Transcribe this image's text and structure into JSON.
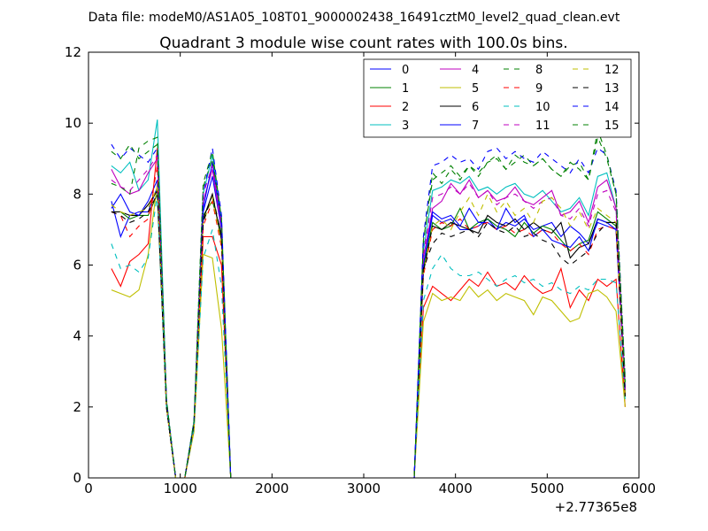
{
  "header": {
    "datafile": "Data file: modeM0/AS1A05_108T01_9000002438_16491cztM0_level2_quad_clean.evt"
  },
  "chart_data": {
    "type": "line",
    "title": "Quadrant 3 module wise count rates with 100.0s bins.",
    "xlabel": "",
    "ylabel": "",
    "offset_label": "+2.77365e8",
    "xlim": [
      0,
      6000
    ],
    "ylim": [
      0,
      12
    ],
    "xticks": [
      0,
      1000,
      2000,
      3000,
      4000,
      5000,
      6000
    ],
    "yticks": [
      0,
      2,
      4,
      6,
      8,
      10,
      12
    ],
    "legend_position": "top-right",
    "x": [
      250,
      350,
      450,
      550,
      650,
      750,
      850,
      950,
      1050,
      1150,
      1250,
      1350,
      1450,
      1550,
      1650,
      1750,
      1850,
      1950,
      2050,
      2150,
      2250,
      2350,
      2450,
      2550,
      2650,
      2750,
      2850,
      2950,
      3050,
      3150,
      3250,
      3350,
      3450,
      3550,
      3650,
      3750,
      3850,
      3950,
      4050,
      4150,
      4250,
      4350,
      4450,
      4550,
      4650,
      4750,
      4850,
      4950,
      5050,
      5150,
      5250,
      5350,
      5450,
      5550,
      5650,
      5750,
      5850
    ],
    "series": [
      {
        "name": "0",
        "color": "#0000ff",
        "dash": "solid",
        "values": [
          7.8,
          6.8,
          7.4,
          7.5,
          7.5,
          8.2,
          2.0,
          0,
          0,
          1.5,
          7.5,
          8.5,
          7.0,
          0,
          0,
          0,
          0,
          0,
          0,
          0,
          0,
          0,
          0,
          0,
          0,
          0,
          0,
          0,
          0,
          0,
          0,
          0,
          0,
          0,
          6.0,
          7.4,
          7.2,
          7.3,
          7.0,
          7.0,
          7.1,
          7.3,
          7.0,
          7.2,
          7.1,
          7.3,
          7.0,
          7.1,
          7.2,
          6.8,
          7.1,
          6.9,
          6.6,
          7.2,
          7.1,
          7.0,
          2.5
        ]
      },
      {
        "name": "1",
        "color": "#008000",
        "dash": "solid",
        "values": [
          7.5,
          7.5,
          7.3,
          7.4,
          7.4,
          8.0,
          2.0,
          0,
          0,
          1.5,
          7.4,
          7.8,
          6.9,
          0,
          0,
          0,
          0,
          0,
          0,
          0,
          0,
          0,
          0,
          0,
          0,
          0,
          0,
          0,
          0,
          0,
          0,
          0,
          0,
          0,
          5.9,
          7.2,
          7.0,
          7.1,
          7.6,
          7.0,
          7.2,
          7.3,
          7.1,
          7.0,
          6.8,
          7.2,
          6.9,
          7.1,
          7.0,
          6.7,
          6.4,
          6.6,
          6.7,
          7.5,
          7.3,
          7.1,
          2.4
        ]
      },
      {
        "name": "2",
        "color": "#ff0000",
        "dash": "solid",
        "values": [
          5.9,
          5.4,
          6.1,
          6.3,
          6.6,
          9.3,
          2.0,
          0,
          0,
          1.4,
          6.8,
          6.8,
          6.0,
          0,
          0,
          0,
          0,
          0,
          0,
          0,
          0,
          0,
          0,
          0,
          0,
          0,
          0,
          0,
          0,
          0,
          0,
          0,
          0,
          0,
          4.8,
          5.4,
          5.2,
          5.0,
          5.3,
          5.6,
          5.4,
          5.8,
          5.4,
          5.5,
          5.3,
          5.7,
          5.4,
          5.2,
          5.3,
          5.9,
          4.8,
          5.3,
          5.0,
          5.6,
          5.4,
          5.6,
          2.0
        ]
      },
      {
        "name": "3",
        "color": "#00bfbf",
        "dash": "solid",
        "values": [
          8.8,
          8.6,
          8.9,
          8.1,
          8.4,
          10.1,
          2.2,
          0,
          0,
          1.6,
          8.0,
          9.1,
          7.2,
          0,
          0,
          0,
          0,
          0,
          0,
          0,
          0,
          0,
          0,
          0,
          0,
          0,
          0,
          0,
          0,
          0,
          0,
          0,
          0,
          0,
          6.4,
          8.1,
          8.2,
          8.4,
          8.3,
          8.5,
          8.1,
          8.2,
          8.0,
          8.2,
          8.3,
          8.0,
          7.9,
          8.1,
          7.8,
          7.5,
          7.6,
          7.9,
          7.4,
          8.5,
          8.6,
          7.6,
          2.6
        ]
      },
      {
        "name": "4",
        "color": "#bf00bf",
        "dash": "solid",
        "values": [
          8.7,
          8.2,
          8.0,
          8.1,
          8.6,
          9.0,
          2.1,
          0,
          0,
          1.5,
          7.8,
          8.7,
          7.0,
          0,
          0,
          0,
          0,
          0,
          0,
          0,
          0,
          0,
          0,
          0,
          0,
          0,
          0,
          0,
          0,
          0,
          0,
          0,
          0,
          0,
          6.2,
          7.6,
          7.8,
          8.3,
          8.0,
          8.4,
          7.9,
          8.1,
          7.8,
          7.9,
          8.2,
          7.8,
          7.7,
          7.9,
          8.1,
          7.4,
          7.5,
          7.8,
          7.2,
          8.2,
          8.4,
          7.6,
          2.5
        ]
      },
      {
        "name": "5",
        "color": "#bfbf00",
        "dash": "solid",
        "values": [
          5.3,
          5.2,
          5.1,
          5.3,
          6.3,
          8.3,
          2.0,
          0,
          0,
          1.3,
          6.3,
          6.2,
          4.2,
          0,
          0,
          0,
          0,
          0,
          0,
          0,
          0,
          0,
          0,
          0,
          0,
          0,
          0,
          0,
          0,
          0,
          0,
          0,
          0,
          0,
          4.4,
          5.2,
          5.0,
          5.1,
          5.0,
          5.4,
          5.1,
          5.3,
          5.0,
          5.2,
          5.1,
          5.0,
          4.6,
          5.1,
          5.0,
          4.7,
          4.4,
          4.5,
          5.2,
          5.3,
          5.1,
          4.7,
          2.0
        ]
      },
      {
        "name": "6",
        "color": "#000000",
        "dash": "solid",
        "values": [
          7.5,
          7.5,
          7.4,
          7.4,
          7.7,
          8.1,
          2.0,
          0,
          0,
          1.5,
          7.3,
          8.0,
          6.7,
          0,
          0,
          0,
          0,
          0,
          0,
          0,
          0,
          0,
          0,
          0,
          0,
          0,
          0,
          0,
          0,
          0,
          0,
          0,
          0,
          0,
          5.8,
          7.1,
          7.0,
          7.2,
          7.1,
          7.0,
          6.9,
          7.4,
          7.2,
          7.1,
          7.3,
          7.0,
          7.2,
          7.0,
          6.9,
          7.2,
          6.2,
          6.5,
          6.6,
          7.3,
          7.2,
          7.2,
          2.3
        ]
      },
      {
        "name": "7",
        "color": "#0000ff",
        "dash": "solid",
        "values": [
          7.6,
          8.0,
          7.5,
          7.4,
          7.8,
          8.4,
          2.1,
          0,
          0,
          1.5,
          7.6,
          8.9,
          7.1,
          0,
          0,
          0,
          0,
          0,
          0,
          0,
          0,
          0,
          0,
          0,
          0,
          0,
          0,
          0,
          0,
          0,
          0,
          0,
          0,
          0,
          6.0,
          7.5,
          7.3,
          7.4,
          7.1,
          7.6,
          7.2,
          7.2,
          7.0,
          7.6,
          7.2,
          7.4,
          6.8,
          7.0,
          6.7,
          6.6,
          6.5,
          6.8,
          6.4,
          7.3,
          7.2,
          7.0,
          2.5
        ]
      },
      {
        "name": "8",
        "color": "#008000",
        "dash": "dashed",
        "values": [
          8.3,
          8.2,
          8.0,
          9.3,
          9.5,
          9.6,
          2.2,
          0,
          0,
          1.6,
          8.2,
          9.0,
          7.3,
          0,
          0,
          0,
          0,
          0,
          0,
          0,
          0,
          0,
          0,
          0,
          0,
          0,
          0,
          0,
          0,
          0,
          0,
          0,
          0,
          0,
          6.6,
          8.6,
          8.3,
          8.7,
          8.4,
          8.8,
          8.5,
          8.9,
          9.1,
          8.7,
          8.9,
          9.1,
          8.8,
          9.0,
          8.7,
          8.5,
          8.8,
          8.9,
          8.4,
          9.6,
          9.0,
          8.0,
          2.8
        ]
      },
      {
        "name": "9",
        "color": "#ff0000",
        "dash": "dashed",
        "values": [
          7.5,
          7.4,
          6.8,
          7.1,
          7.3,
          8.8,
          2.0,
          0,
          0,
          1.4,
          7.1,
          7.8,
          6.5,
          0,
          0,
          0,
          0,
          0,
          0,
          0,
          0,
          0,
          0,
          0,
          0,
          0,
          0,
          0,
          0,
          0,
          0,
          0,
          0,
          0,
          5.7,
          7.0,
          7.2,
          7.1,
          7.3,
          7.0,
          7.1,
          7.2,
          7.0,
          7.1,
          6.9,
          7.0,
          6.8,
          7.0,
          6.9,
          6.6,
          6.4,
          6.6,
          6.3,
          7.0,
          7.1,
          7.0,
          2.3
        ]
      },
      {
        "name": "10",
        "color": "#00bfbf",
        "dash": "dashed",
        "values": [
          6.6,
          5.9,
          6.0,
          5.8,
          6.2,
          8.0,
          2.0,
          0,
          0,
          1.4,
          6.2,
          7.0,
          5.4,
          0,
          0,
          0,
          0,
          0,
          0,
          0,
          0,
          0,
          0,
          0,
          0,
          0,
          0,
          0,
          0,
          0,
          0,
          0,
          0,
          0,
          5.0,
          5.9,
          6.3,
          5.9,
          5.7,
          5.7,
          5.8,
          5.6,
          5.4,
          5.6,
          5.7,
          5.5,
          5.6,
          5.4,
          5.5,
          5.3,
          5.2,
          5.4,
          5.3,
          5.6,
          5.6,
          5.5,
          2.2
        ]
      },
      {
        "name": "11",
        "color": "#bf00bf",
        "dash": "dashed",
        "values": [
          8.4,
          8.2,
          8.1,
          8.4,
          8.7,
          9.1,
          2.1,
          0,
          0,
          1.5,
          8.0,
          8.8,
          7.2,
          0,
          0,
          0,
          0,
          0,
          0,
          0,
          0,
          0,
          0,
          0,
          0,
          0,
          0,
          0,
          0,
          0,
          0,
          0,
          0,
          0,
          6.3,
          7.9,
          8.0,
          8.2,
          8.0,
          8.3,
          7.9,
          8.1,
          7.7,
          7.9,
          8.0,
          7.8,
          7.6,
          7.8,
          7.9,
          7.4,
          7.3,
          7.6,
          7.1,
          8.0,
          8.1,
          7.5,
          2.5
        ]
      },
      {
        "name": "12",
        "color": "#bfbf00",
        "dash": "dashed",
        "values": [
          7.7,
          7.5,
          7.4,
          7.5,
          7.6,
          8.2,
          2.0,
          0,
          0,
          1.4,
          7.2,
          7.9,
          6.6,
          0,
          0,
          0,
          0,
          0,
          0,
          0,
          0,
          0,
          0,
          0,
          0,
          0,
          0,
          0,
          0,
          0,
          0,
          0,
          0,
          0,
          5.8,
          7.1,
          7.3,
          7.0,
          7.5,
          7.9,
          7.4,
          8.0,
          7.5,
          7.8,
          7.4,
          7.6,
          7.2,
          7.8,
          7.9,
          7.6,
          7.1,
          7.5,
          7.0,
          7.6,
          7.4,
          7.2,
          2.3
        ]
      },
      {
        "name": "13",
        "color": "#000000",
        "dash": "dashed",
        "values": [
          7.5,
          7.4,
          7.2,
          7.3,
          7.5,
          8.0,
          2.0,
          0,
          0,
          1.5,
          7.2,
          8.0,
          6.8,
          0,
          0,
          0,
          0,
          0,
          0,
          0,
          0,
          0,
          0,
          0,
          0,
          0,
          0,
          0,
          0,
          0,
          0,
          0,
          0,
          0,
          5.9,
          6.6,
          6.9,
          6.8,
          6.9,
          7.0,
          6.8,
          7.2,
          7.0,
          6.9,
          7.1,
          6.8,
          6.9,
          6.7,
          6.6,
          6.2,
          6.0,
          6.2,
          6.4,
          6.9,
          7.2,
          7.2,
          2.3
        ]
      },
      {
        "name": "14",
        "color": "#0000ff",
        "dash": "dashed",
        "values": [
          9.4,
          9.0,
          9.3,
          9.1,
          8.9,
          9.3,
          2.2,
          0,
          0,
          1.6,
          8.0,
          9.3,
          7.4,
          0,
          0,
          0,
          0,
          0,
          0,
          0,
          0,
          0,
          0,
          0,
          0,
          0,
          0,
          0,
          0,
          0,
          0,
          0,
          0,
          0,
          6.8,
          8.8,
          8.9,
          9.1,
          8.9,
          9.0,
          8.7,
          9.2,
          9.3,
          9.0,
          9.2,
          9.0,
          8.9,
          9.2,
          9.0,
          8.8,
          8.6,
          9.0,
          8.6,
          9.3,
          9.1,
          8.1,
          2.8
        ]
      },
      {
        "name": "15",
        "color": "#008000",
        "dash": "dashed",
        "values": [
          9.2,
          9.0,
          9.4,
          9.0,
          9.2,
          9.4,
          2.2,
          0,
          0,
          1.6,
          8.3,
          9.2,
          7.3,
          0,
          0,
          0,
          0,
          0,
          0,
          0,
          0,
          0,
          0,
          0,
          0,
          0,
          0,
          0,
          0,
          0,
          0,
          0,
          0,
          0,
          6.7,
          8.4,
          8.6,
          8.8,
          8.5,
          8.8,
          8.6,
          8.9,
          9.0,
          8.7,
          9.1,
          8.9,
          8.8,
          9.0,
          8.7,
          8.5,
          8.9,
          8.7,
          8.4,
          9.8,
          9.1,
          8.0,
          2.7
        ]
      }
    ]
  }
}
